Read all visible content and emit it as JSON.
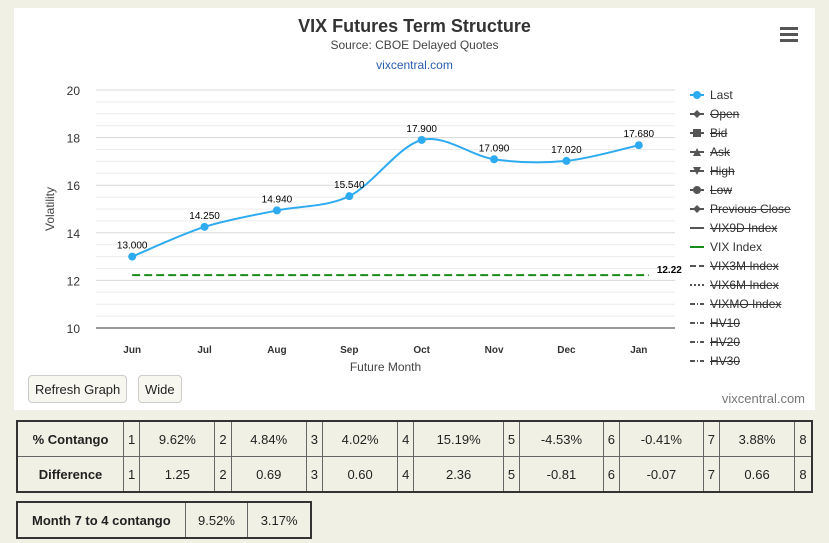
{
  "title": "VIX Futures Term Structure",
  "subtitle": "Source: CBOE Delayed Quotes",
  "link": "vixcentral.com",
  "credit": "vixcentral.com",
  "buttons": {
    "refresh": "Refresh Graph",
    "wide": "Wide"
  },
  "legend": [
    {
      "label": "Last",
      "active": true,
      "symbol": "circle-line",
      "color": "#2eabf0"
    },
    {
      "label": "Open",
      "active": false,
      "symbol": "diamond-line",
      "color": "#555"
    },
    {
      "label": "Bid",
      "active": false,
      "symbol": "square-line",
      "color": "#555"
    },
    {
      "label": "Ask",
      "active": false,
      "symbol": "triangle-line",
      "color": "#555"
    },
    {
      "label": "High",
      "active": false,
      "symbol": "triangle-down-line",
      "color": "#555"
    },
    {
      "label": "Low",
      "active": false,
      "symbol": "circle-line",
      "color": "#555"
    },
    {
      "label": "Previous Close",
      "active": false,
      "symbol": "diamond-line",
      "color": "#555"
    },
    {
      "label": "VIX9D Index",
      "active": false,
      "symbol": "solid",
      "color": "#555"
    },
    {
      "label": "VIX Index",
      "active": true,
      "symbol": "solid",
      "color": "#1a8a1a"
    },
    {
      "label": "VIX3M Index",
      "active": false,
      "symbol": "longdash",
      "color": "#555"
    },
    {
      "label": "VIX6M Index",
      "active": false,
      "symbol": "dot",
      "color": "#555"
    },
    {
      "label": "VIXMO Index",
      "active": false,
      "symbol": "dashdot",
      "color": "#555"
    },
    {
      "label": "HV10",
      "active": false,
      "symbol": "dashdot",
      "color": "#555"
    },
    {
      "label": "HV20",
      "active": false,
      "symbol": "dashdot",
      "color": "#555"
    },
    {
      "label": "HV30",
      "active": false,
      "symbol": "dashdot",
      "color": "#555"
    }
  ],
  "chart_data": {
    "type": "line",
    "title": "VIX Futures Term Structure",
    "subtitle": "Source: CBOE Delayed Quotes",
    "xlabel": "Future Month",
    "ylabel": "Volatility",
    "categories": [
      "Jun",
      "Jul",
      "Aug",
      "Sep",
      "Oct",
      "Nov",
      "Dec",
      "Jan"
    ],
    "ylim": [
      10,
      20
    ],
    "yticks": [
      10,
      12,
      14,
      16,
      18,
      20
    ],
    "grid": true,
    "legend_position": "right",
    "series": [
      {
        "name": "Last",
        "color": "#2eabf0",
        "values": [
          13.0,
          14.25,
          14.94,
          15.54,
          17.9,
          17.09,
          17.02,
          17.68
        ],
        "labels": [
          "13.000",
          "14.250",
          "14.940",
          "15.540",
          "17.900",
          "17.090",
          "17.020",
          "17.680"
        ]
      },
      {
        "name": "VIX Index",
        "color": "#1a8a1a",
        "constant": 12.22,
        "label": "12.22"
      }
    ]
  },
  "tables": {
    "contango": {
      "rows": [
        {
          "head": "% Contango",
          "cells": [
            [
              "1",
              "9.62%"
            ],
            [
              "2",
              "4.84%"
            ],
            [
              "3",
              "4.02%"
            ],
            [
              "4",
              "15.19%"
            ],
            [
              "5",
              "-4.53%"
            ],
            [
              "6",
              "-0.41%"
            ],
            [
              "7",
              "3.88%"
            ],
            [
              "8",
              ""
            ]
          ]
        },
        {
          "head": "Difference",
          "cells": [
            [
              "1",
              "1.25"
            ],
            [
              "2",
              "0.69"
            ],
            [
              "3",
              "0.60"
            ],
            [
              "4",
              "2.36"
            ],
            [
              "5",
              "-0.81"
            ],
            [
              "6",
              "-0.07"
            ],
            [
              "7",
              "0.66"
            ],
            [
              "8",
              ""
            ]
          ]
        }
      ]
    },
    "month74": {
      "head": "Month 7 to 4 contango",
      "v1": "9.52%",
      "v2": "3.17%"
    }
  }
}
